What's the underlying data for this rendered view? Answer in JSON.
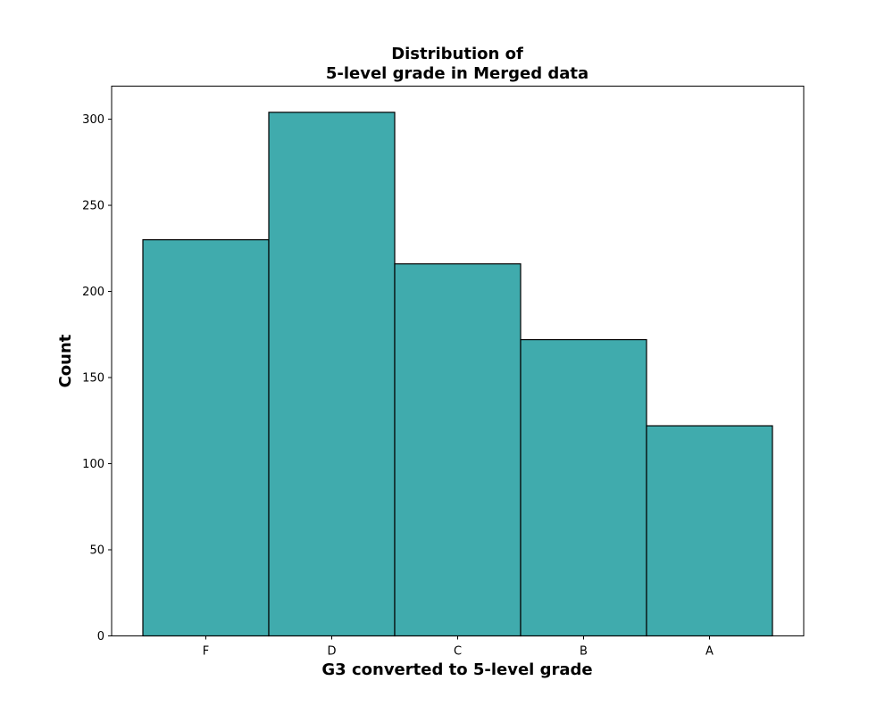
{
  "chart_data": {
    "type": "bar",
    "title_lines": [
      "Distribution of",
      "5-level grade in Merged data"
    ],
    "xlabel": "G3 converted to 5-level grade",
    "ylabel": "Count",
    "categories": [
      "F",
      "D",
      "C",
      "B",
      "A"
    ],
    "values": [
      230,
      304,
      216,
      172,
      122
    ],
    "ylim": [
      0,
      319.2
    ],
    "yticks": [
      0,
      50,
      100,
      150,
      200,
      250,
      300
    ],
    "grid": false,
    "bar_color": "#40abad",
    "edge_color": "#000000"
  }
}
